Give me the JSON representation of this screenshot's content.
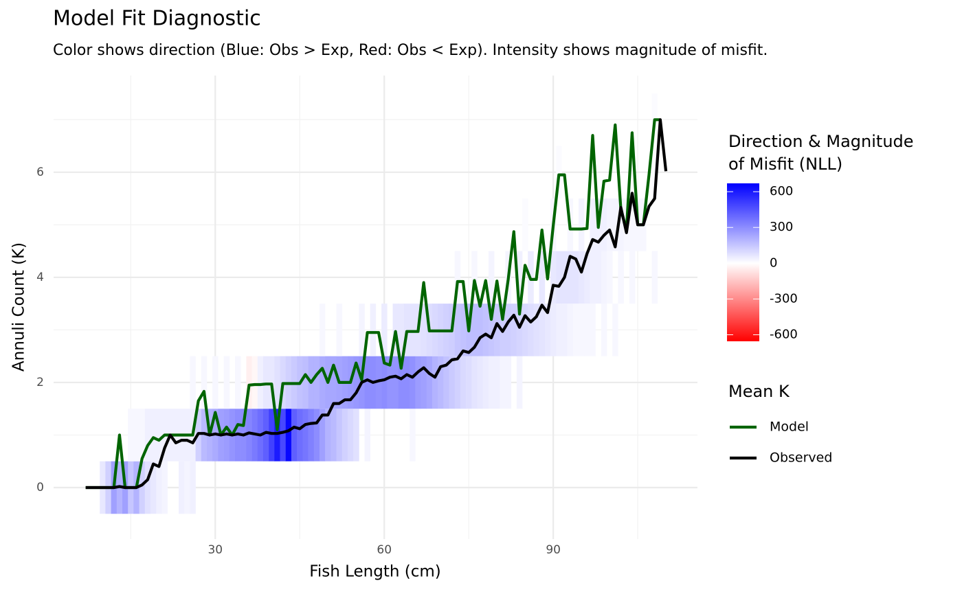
{
  "chart_data": {
    "type": "heatmap_line",
    "title": "Model Fit Diagnostic",
    "subtitle": "Color shows direction (Blue: Obs > Exp, Red: Obs < Exp). Intensity shows magnitude of misfit.",
    "x_label": "Fish Length (cm)",
    "y_label": "Annuli Count (K)",
    "xlim": [
      1.3,
      115.6
    ],
    "xticks": [
      30,
      60,
      90
    ],
    "ylim": [
      -0.98,
      7.84
    ],
    "yticks": [
      0,
      2,
      4,
      6
    ],
    "grid": true,
    "colorbar_title": [
      "Direction & Magnitude",
      "of Misfit (NLL)"
    ],
    "colorbar_lim": [
      -655,
      670
    ],
    "colorbar_ticks": [
      -600,
      -300,
      0,
      300,
      600
    ],
    "colorbar_colors": {
      "low": "#ff0000",
      "mid": "#ffffff",
      "high": "#0000ff"
    },
    "tiles": [
      {
        "k": 0,
        "x": [
          10,
          11,
          12,
          13,
          14,
          15,
          16,
          17,
          18,
          19,
          20,
          21,
          24,
          25,
          26
        ],
        "values": [
          60,
          120,
          250,
          200,
          250,
          150,
          200,
          120,
          80,
          60,
          40,
          30,
          40,
          30,
          40
        ]
      },
      {
        "k": 1,
        "x": [
          15,
          16,
          17,
          18,
          19,
          20,
          21,
          22,
          23,
          24,
          25,
          26,
          27,
          28,
          29,
          30,
          31,
          32,
          33,
          34,
          35,
          36,
          37,
          38,
          39,
          40,
          41,
          42,
          43,
          44,
          45,
          46,
          47,
          48,
          49,
          50,
          51,
          52,
          53,
          54,
          55,
          57,
          65
        ],
        "values": [
          20,
          20,
          20,
          40,
          40,
          40,
          40,
          40,
          40,
          40,
          40,
          40,
          120,
          180,
          200,
          220,
          250,
          260,
          280,
          300,
          300,
          320,
          350,
          380,
          420,
          500,
          600,
          480,
          650,
          420,
          380,
          360,
          330,
          300,
          250,
          200,
          180,
          150,
          120,
          100,
          80,
          30,
          20
        ]
      },
      {
        "k": 2,
        "x": [
          26,
          28,
          30,
          32,
          34,
          36,
          37,
          38,
          39,
          40,
          41,
          42,
          43,
          44,
          45,
          46,
          47,
          48,
          49,
          50,
          51,
          52,
          53,
          54,
          55,
          56,
          57,
          58,
          59,
          60,
          61,
          62,
          63,
          64,
          65,
          66,
          67,
          68,
          69,
          70,
          71,
          72,
          73,
          74,
          75,
          76,
          77,
          78,
          79,
          80,
          81,
          82,
          84
        ],
        "values": [
          20,
          20,
          20,
          20,
          20,
          -40,
          -20,
          40,
          60,
          60,
          80,
          100,
          120,
          140,
          160,
          170,
          200,
          200,
          220,
          230,
          230,
          240,
          250,
          260,
          270,
          280,
          300,
          300,
          290,
          300,
          280,
          280,
          300,
          300,
          290,
          260,
          250,
          230,
          200,
          180,
          160,
          140,
          120,
          100,
          90,
          70,
          60,
          50,
          40,
          40,
          30,
          30,
          30
        ]
      },
      {
        "k": 3,
        "x": [
          49,
          52,
          56,
          58,
          60,
          62,
          63,
          64,
          65,
          66,
          67,
          68,
          69,
          70,
          71,
          72,
          73,
          74,
          75,
          76,
          77,
          78,
          79,
          80,
          81,
          82,
          83,
          84,
          85,
          86,
          87,
          88,
          89,
          90,
          91,
          92,
          93,
          94,
          95,
          96,
          97,
          99,
          101
        ],
        "values": [
          20,
          20,
          30,
          40,
          50,
          60,
          60,
          70,
          70,
          70,
          80,
          90,
          100,
          110,
          120,
          130,
          150,
          160,
          170,
          170,
          170,
          160,
          150,
          140,
          130,
          130,
          120,
          110,
          100,
          90,
          80,
          70,
          60,
          50,
          40,
          40,
          30,
          20,
          20,
          20,
          20,
          20,
          20
        ]
      },
      {
        "k": 4,
        "x": [
          73,
          76,
          79,
          82,
          84,
          86,
          88,
          90,
          91,
          92,
          93,
          94,
          95,
          96,
          97,
          98,
          99,
          100,
          102,
          104,
          108
        ],
        "values": [
          20,
          20,
          30,
          30,
          40,
          50,
          60,
          60,
          70,
          70,
          70,
          70,
          60,
          50,
          40,
          40,
          30,
          20,
          20,
          20,
          20
        ]
      },
      {
        "k": 5,
        "x": [
          85,
          90,
          93,
          95,
          97,
          98,
          99,
          100,
          101,
          102,
          103,
          104,
          105,
          106
        ],
        "values": [
          10,
          20,
          20,
          30,
          40,
          40,
          40,
          30,
          30,
          30,
          20,
          20,
          20,
          20
        ]
      },
      {
        "k": 6,
        "x": [
          91,
          104,
          108
        ],
        "values": [
          10,
          10,
          10
        ]
      },
      {
        "k": 7,
        "x": [
          108
        ],
        "values": [
          10
        ]
      }
    ],
    "legend_title": "Mean K",
    "x": [
      7,
      8,
      9,
      10,
      11,
      12,
      13,
      14,
      15,
      16,
      17,
      18,
      19,
      20,
      21,
      22,
      23,
      24,
      25,
      26,
      27,
      28,
      29,
      30,
      31,
      32,
      33,
      34,
      35,
      36,
      37,
      38,
      39,
      40,
      41,
      42,
      43,
      44,
      45,
      46,
      47,
      48,
      49,
      50,
      51,
      52,
      53,
      54,
      55,
      56,
      57,
      58,
      59,
      60,
      61,
      62,
      63,
      64,
      65,
      66,
      67,
      68,
      69,
      70,
      71,
      72,
      73,
      74,
      75,
      76,
      77,
      78,
      79,
      80,
      81,
      82,
      83,
      84,
      85,
      86,
      87,
      88,
      89,
      90,
      91,
      92,
      93,
      94,
      95,
      96,
      97,
      98,
      99,
      100,
      101,
      102,
      103,
      104,
      105,
      106,
      107,
      108,
      109,
      110
    ],
    "series": [
      {
        "name": "Model",
        "color": "#006400",
        "values": [
          0,
          0,
          0,
          0,
          0,
          0,
          1.0,
          0,
          0,
          0,
          0.55,
          0.8,
          0.95,
          0.9,
          1.0,
          1.0,
          1.0,
          1.0,
          1.0,
          1.0,
          1.65,
          1.83,
          1.0,
          1.43,
          1.0,
          1.15,
          1.0,
          1.2,
          1.18,
          1.95,
          1.96,
          1.96,
          1.97,
          1.97,
          1.1,
          1.98,
          1.98,
          1.98,
          1.98,
          2.15,
          2.0,
          2.15,
          2.27,
          2.0,
          2.33,
          2.0,
          2.0,
          2.0,
          2.37,
          2.05,
          2.95,
          2.95,
          2.95,
          2.37,
          2.33,
          2.97,
          2.27,
          2.97,
          2.97,
          2.97,
          3.9,
          2.98,
          2.98,
          2.98,
          2.98,
          2.98,
          3.92,
          3.92,
          2.98,
          3.94,
          3.45,
          3.94,
          3.2,
          3.93,
          3.2,
          3.96,
          4.87,
          3.3,
          4.23,
          3.96,
          3.96,
          4.9,
          3.97,
          4.98,
          5.95,
          5.95,
          4.92,
          4.92,
          4.92,
          4.93,
          6.7,
          4.95,
          5.83,
          5.85,
          6.9,
          5.3,
          4.9,
          6.75,
          5.0,
          5.0,
          5.95,
          7.0,
          7.0,
          null
        ]
      },
      {
        "name": "Observed",
        "color": "#000000",
        "values": [
          0,
          0,
          0,
          0,
          0,
          0,
          0.02,
          0,
          0,
          0,
          0.05,
          0.15,
          0.45,
          0.4,
          0.75,
          1.0,
          0.85,
          0.9,
          0.9,
          0.85,
          1.03,
          1.03,
          1.0,
          1.02,
          1.0,
          1.02,
          1.0,
          1.02,
          1.0,
          1.04,
          1.02,
          1.0,
          1.05,
          1.03,
          1.03,
          1.05,
          1.08,
          1.15,
          1.12,
          1.2,
          1.22,
          1.23,
          1.38,
          1.38,
          1.6,
          1.6,
          1.67,
          1.67,
          1.8,
          2.0,
          2.05,
          2.0,
          2.03,
          2.05,
          2.1,
          2.12,
          2.07,
          2.15,
          2.1,
          2.2,
          2.28,
          2.17,
          2.1,
          2.3,
          2.33,
          2.43,
          2.45,
          2.6,
          2.57,
          2.67,
          2.85,
          2.92,
          2.85,
          3.12,
          2.97,
          3.15,
          3.28,
          3.05,
          3.27,
          3.15,
          3.25,
          3.47,
          3.33,
          3.85,
          3.83,
          4.0,
          4.4,
          4.35,
          4.1,
          4.45,
          4.72,
          4.67,
          4.8,
          4.9,
          4.58,
          5.33,
          4.85,
          5.6,
          5.0,
          5.0,
          5.35,
          5.5,
          7.0,
          6.02
        ]
      }
    ]
  }
}
